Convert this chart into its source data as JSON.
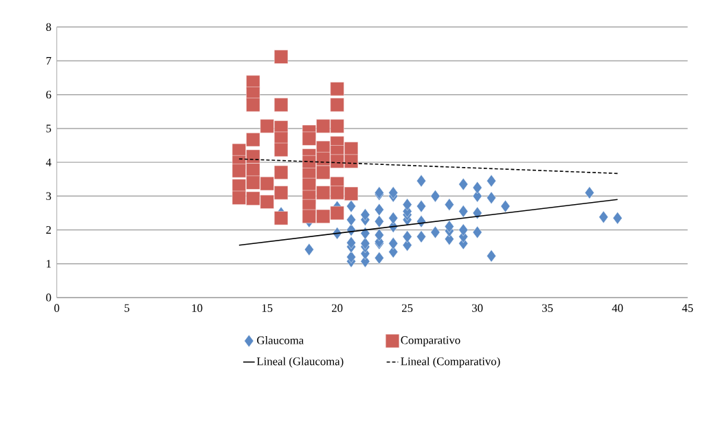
{
  "chart_data": {
    "type": "scatter",
    "xlim": [
      0,
      45
    ],
    "ylim": [
      0,
      8
    ],
    "xticks": [
      0,
      5,
      10,
      15,
      20,
      25,
      30,
      35,
      40,
      45
    ],
    "yticks": [
      0,
      1,
      2,
      3,
      4,
      5,
      6,
      7,
      8
    ],
    "grid": "y",
    "legend": "bottom",
    "series": [
      {
        "name": "Glaucoma",
        "marker": "diamond",
        "color": "#5a8ac6",
        "x": [
          16,
          18,
          18,
          20,
          20,
          21,
          21,
          21,
          21,
          21,
          21,
          21,
          22,
          22,
          22,
          22,
          22,
          22,
          22,
          23,
          23,
          23,
          23,
          23,
          23,
          23,
          23,
          24,
          24,
          24,
          24,
          24,
          24,
          25,
          25,
          25,
          25,
          25,
          25,
          26,
          26,
          26,
          26,
          27,
          27,
          28,
          28,
          28,
          28,
          29,
          29,
          29,
          29,
          29,
          30,
          30,
          30,
          30,
          31,
          31,
          31,
          32,
          38,
          39,
          40
        ],
        "values": [
          2.5,
          1.42,
          2.25,
          1.9,
          2.68,
          1.07,
          1.2,
          1.5,
          1.62,
          2.0,
          2.3,
          2.7,
          1.07,
          1.3,
          1.5,
          1.6,
          1.9,
          2.3,
          2.45,
          1.17,
          1.6,
          1.65,
          1.85,
          2.25,
          2.6,
          3.05,
          3.1,
          1.35,
          1.6,
          2.1,
          2.35,
          3.0,
          3.1,
          1.55,
          1.8,
          2.3,
          2.45,
          2.55,
          2.75,
          1.8,
          2.25,
          2.7,
          3.45,
          1.93,
          3.0,
          1.73,
          1.97,
          2.1,
          2.75,
          1.6,
          1.8,
          2.0,
          2.55,
          3.35,
          1.93,
          2.5,
          3.0,
          3.25,
          1.23,
          2.95,
          3.45,
          2.7,
          3.1,
          2.38,
          2.35
        ]
      },
      {
        "name": "Comparativo",
        "marker": "square",
        "color": "#cd5f58",
        "x": [
          13,
          13,
          13,
          13,
          13,
          14,
          14,
          14,
          14,
          14,
          14,
          14,
          14,
          15,
          15,
          15,
          16,
          16,
          16,
          16,
          16,
          16,
          16,
          16,
          18,
          18,
          18,
          18,
          18,
          18,
          18,
          18,
          18,
          19,
          19,
          19,
          19,
          19,
          19,
          20,
          20,
          20,
          20,
          20,
          20,
          20,
          20,
          20,
          21,
          21,
          21
        ],
        "values": [
          4.35,
          4.0,
          3.75,
          3.3,
          2.95,
          6.37,
          6.03,
          5.7,
          4.67,
          4.17,
          3.77,
          3.4,
          2.93,
          5.07,
          3.37,
          2.83,
          7.12,
          5.7,
          5.03,
          4.7,
          4.37,
          3.7,
          3.1,
          2.35,
          4.9,
          4.7,
          4.2,
          4.0,
          3.63,
          3.33,
          2.97,
          2.7,
          2.4,
          5.07,
          4.43,
          4.1,
          3.7,
          3.1,
          2.4,
          6.17,
          5.7,
          5.07,
          4.57,
          4.3,
          4.03,
          3.37,
          3.1,
          2.5,
          4.4,
          4.03,
          3.07
        ]
      },
      {
        "name": "Lineal (Glaucoma)",
        "type": "line",
        "line_style": "solid",
        "color": "#000000",
        "x": [
          13,
          40
        ],
        "values": [
          1.55,
          2.9
        ]
      },
      {
        "name": "Lineal (Comparativo)",
        "type": "line",
        "line_style": "dashed",
        "color": "#000000",
        "x": [
          13,
          40
        ],
        "values": [
          4.1,
          3.67
        ]
      }
    ]
  }
}
